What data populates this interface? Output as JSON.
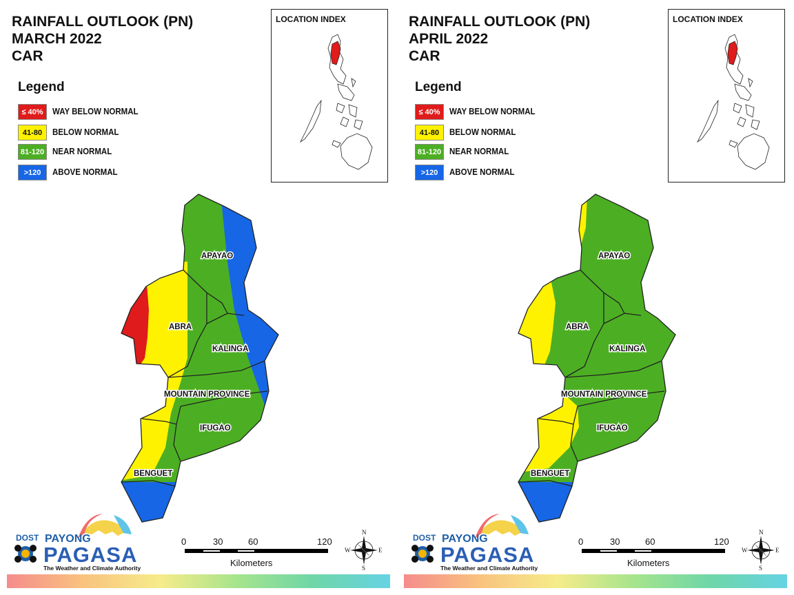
{
  "panels": [
    {
      "title_lines": [
        "RAINFALL OUTLOOK (PN)",
        "MARCH 2022",
        "CAR"
      ],
      "provinces": [
        "APAYAO",
        "ABRA",
        "KALINGA",
        "MOUNTAIN PROVINCE",
        "IFUGAO",
        "BENGUET"
      ]
    },
    {
      "title_lines": [
        "RAINFALL OUTLOOK (PN)",
        "APRIL 2022",
        "CAR"
      ],
      "provinces": [
        "APAYAO",
        "ABRA",
        "KALINGA",
        "MOUNTAIN PROVINCE",
        "IFUGAO",
        "BENGUET"
      ]
    }
  ],
  "legend": {
    "heading": "Legend",
    "items": [
      {
        "range": "≤ 40%",
        "label": "WAY BELOW NORMAL",
        "color": "#e01b1b",
        "text_color": "#ffffff"
      },
      {
        "range": "41-80",
        "label": "BELOW NORMAL",
        "color": "#fff200",
        "text_color": "#111111"
      },
      {
        "range": "81-120",
        "label": "NEAR NORMAL",
        "color": "#4caf23",
        "text_color": "#ffffff"
      },
      {
        "range": ">120",
        "label": "ABOVE NORMAL",
        "color": "#1666e6",
        "text_color": "#ffffff"
      }
    ]
  },
  "location_index": {
    "title": "LOCATION INDEX",
    "highlight_color": "#e01b1b"
  },
  "scale_bar": {
    "ticks": [
      "0",
      "30",
      "60",
      "120"
    ],
    "unit": "Kilometers"
  },
  "compass": {
    "n": "N",
    "e": "E",
    "s": "S",
    "w": "W"
  },
  "logo": {
    "dost": "DOST",
    "payong": "PAYONG",
    "pagasa": "PAGASA",
    "tagline": "The Weather and Climate Authority"
  }
}
